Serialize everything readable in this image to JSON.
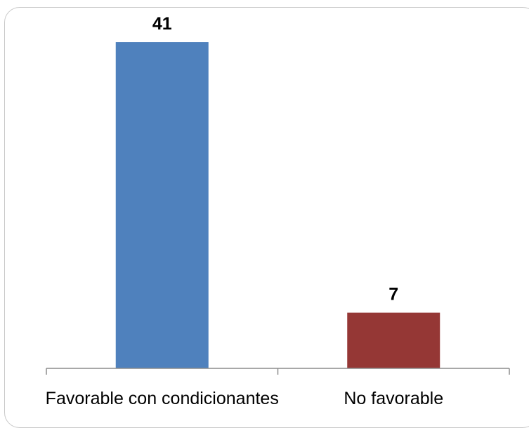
{
  "chart_data": {
    "type": "bar",
    "title": "",
    "xlabel": "",
    "ylabel": "",
    "categories": [
      "Favorable con condicionantes",
      "No favorable"
    ],
    "values": [
      41,
      7
    ],
    "bar_colors": [
      "#4f81bd",
      "#953735"
    ],
    "data_labels": [
      "41",
      "7"
    ],
    "ylim": [
      0,
      45
    ],
    "grid": false,
    "legend": "none"
  }
}
